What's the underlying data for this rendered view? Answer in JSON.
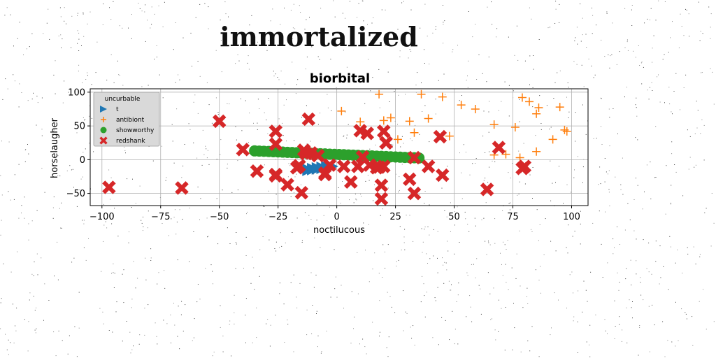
{
  "figure": {
    "suptitle": "immortalized"
  },
  "chart_data": {
    "type": "scatter",
    "title": "biorbital",
    "xlabel": "noctilucous",
    "ylabel": "horselaugher",
    "xlim": [
      -105,
      107
    ],
    "ylim": [
      -68,
      105
    ],
    "xticks": [
      -100,
      -75,
      -50,
      -25,
      0,
      25,
      50,
      75,
      100
    ],
    "yticks": [
      -50,
      0,
      50,
      100
    ],
    "xtick_labels": [
      "−100",
      "−75",
      "−50",
      "−25",
      "0",
      "25",
      "50",
      "75",
      "100"
    ],
    "ytick_labels": [
      "−50",
      "0",
      "50",
      "100"
    ],
    "grid": true,
    "legend": {
      "title": "uncurbable",
      "placement": "top-left"
    },
    "series": [
      {
        "name": "t",
        "marker": "triangle-right",
        "color": "#1f77b4",
        "x": [
          -12,
          -10,
          -8,
          -6,
          -4,
          -2
        ],
        "y": [
          -15,
          -14,
          -13,
          -12,
          -11,
          -10
        ]
      },
      {
        "name": "antibiont",
        "marker": "plus",
        "color": "#ff7f0e",
        "x": [
          2,
          10,
          18,
          20,
          23,
          26,
          31,
          33,
          36,
          39,
          45,
          48,
          53,
          59,
          67,
          67,
          72,
          76,
          78,
          79,
          82,
          85,
          85,
          86,
          92,
          95,
          97,
          98
        ],
        "y": [
          72,
          56,
          97,
          58,
          62,
          30,
          57,
          40,
          97,
          61,
          93,
          35,
          81,
          75,
          52,
          7,
          8,
          48,
          3,
          92,
          86,
          68,
          12,
          77,
          30,
          78,
          44,
          42
        ]
      },
      {
        "name": "showworthy",
        "marker": "circle",
        "color": "#2ca02c",
        "x": [
          -35,
          -33,
          -31,
          -29,
          -27,
          -25,
          -23,
          -21,
          -19,
          -17,
          -15,
          -13,
          -11,
          -9,
          -7,
          -5,
          -3,
          -1,
          1,
          3,
          5,
          7,
          9,
          11,
          13,
          15,
          17,
          19,
          21,
          23,
          25,
          27,
          29,
          31,
          33,
          35
        ],
        "y": [
          13,
          12.7,
          12.4,
          12.1,
          11.8,
          11.5,
          11.2,
          10.9,
          10.6,
          10.3,
          10,
          9.7,
          9.4,
          9.1,
          8.8,
          8.5,
          8.2,
          7.9,
          7.6,
          7.3,
          7,
          6.7,
          6.4,
          6.1,
          5.8,
          5.5,
          5.2,
          4.9,
          4.6,
          4.3,
          4,
          3.7,
          3.4,
          3.1,
          2.8,
          2.5
        ]
      },
      {
        "name": "redshank",
        "marker": "x",
        "color": "#d62728",
        "x": [
          -97,
          -66,
          -50,
          -40,
          -34,
          -26,
          -26,
          -26,
          -26,
          -21,
          -17,
          -16,
          -15,
          -14,
          -13,
          -12,
          -11,
          -8,
          -5,
          -5,
          -3,
          3,
          6,
          9,
          10,
          11,
          13,
          14,
          17,
          18,
          19,
          19,
          20,
          20,
          21,
          21,
          31,
          33,
          33,
          39,
          44,
          45,
          64,
          69,
          79,
          80
        ],
        "y": [
          -41,
          -42,
          57,
          15,
          -17,
          42,
          23,
          -24,
          -22,
          -37,
          -12,
          -9,
          -49,
          14,
          9,
          60,
          10,
          6,
          -20,
          -22,
          -8,
          -10,
          -33,
          -10,
          43,
          4,
          39,
          -8,
          -12,
          -11,
          -38,
          -58,
          -10,
          42,
          25,
          25,
          -29,
          -50,
          3,
          -10,
          34,
          -23,
          -44,
          18,
          -13,
          -10
        ]
      }
    ]
  }
}
